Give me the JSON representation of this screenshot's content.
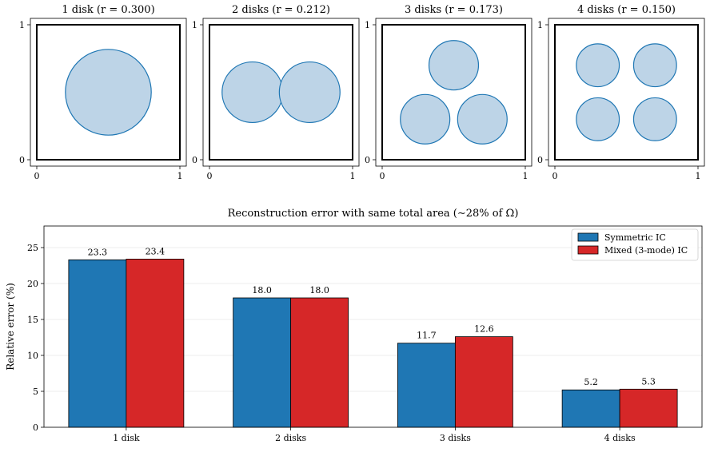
{
  "chart_data": [
    {
      "type": "scatter",
      "title": "1 disk  (r = 0.300)",
      "xlim": [
        0,
        1
      ],
      "ylim": [
        0,
        1
      ],
      "x_ticks": [
        "0",
        "1"
      ],
      "y_ticks": [
        "0",
        "1"
      ],
      "disks": [
        {
          "cx": 0.5,
          "cy": 0.5,
          "r": 0.3
        }
      ]
    },
    {
      "type": "scatter",
      "title": "2 disks  (r = 0.212)",
      "xlim": [
        0,
        1
      ],
      "ylim": [
        0,
        1
      ],
      "x_ticks": [
        "0",
        "1"
      ],
      "y_ticks": [
        "0",
        "1"
      ],
      "disks": [
        {
          "cx": 0.3,
          "cy": 0.5,
          "r": 0.212
        },
        {
          "cx": 0.7,
          "cy": 0.5,
          "r": 0.212
        }
      ]
    },
    {
      "type": "scatter",
      "title": "3 disks  (r = 0.173)",
      "xlim": [
        0,
        1
      ],
      "ylim": [
        0,
        1
      ],
      "x_ticks": [
        "0",
        "1"
      ],
      "y_ticks": [
        "0",
        "1"
      ],
      "disks": [
        {
          "cx": 0.5,
          "cy": 0.7,
          "r": 0.173
        },
        {
          "cx": 0.3,
          "cy": 0.3,
          "r": 0.173
        },
        {
          "cx": 0.7,
          "cy": 0.3,
          "r": 0.173
        }
      ]
    },
    {
      "type": "scatter",
      "title": "4 disks  (r = 0.150)",
      "xlim": [
        0,
        1
      ],
      "ylim": [
        0,
        1
      ],
      "x_ticks": [
        "0",
        "1"
      ],
      "y_ticks": [
        "0",
        "1"
      ],
      "disks": [
        {
          "cx": 0.3,
          "cy": 0.7,
          "r": 0.15
        },
        {
          "cx": 0.7,
          "cy": 0.7,
          "r": 0.15
        },
        {
          "cx": 0.3,
          "cy": 0.3,
          "r": 0.15
        },
        {
          "cx": 0.7,
          "cy": 0.3,
          "r": 0.15
        }
      ]
    },
    {
      "type": "bar",
      "title": "Reconstruction error with same total area (∼28% of Ω)",
      "xlabel": "",
      "ylabel": "Relative error (%)",
      "ylim": [
        0,
        28
      ],
      "y_ticks": [
        0,
        5,
        10,
        15,
        20,
        25
      ],
      "grid": true,
      "legend_position": "top-right",
      "categories": [
        "1 disk",
        "2 disks",
        "3 disks",
        "4 disks"
      ],
      "series": [
        {
          "name": "Symmetric IC",
          "color": "#1f77b4",
          "values": [
            23.3,
            18.0,
            11.7,
            5.2
          ],
          "labels": [
            "23.3",
            "18.0",
            "11.7",
            "5.2"
          ]
        },
        {
          "name": "Mixed (3-mode) IC",
          "color": "#d62728",
          "values": [
            23.4,
            18.0,
            12.6,
            5.3
          ],
          "labels": [
            "23.4",
            "18.0",
            "12.6",
            "5.3"
          ]
        }
      ]
    }
  ],
  "colors": {
    "disk_fill": "#bdd4e7",
    "disk_edge": "#1f77b4"
  }
}
